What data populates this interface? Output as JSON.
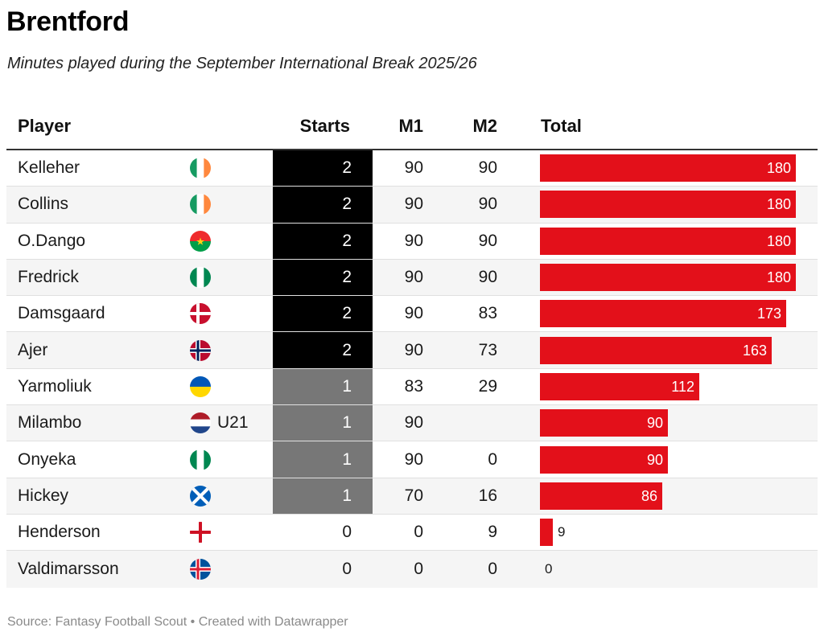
{
  "title": "Brentford",
  "subtitle": "Minutes played during the September International Break 2025/26",
  "footer": "Source: Fantasy Football Scout • Created with Datawrapper",
  "columns": {
    "player": "Player",
    "starts": "Starts",
    "m1": "M1",
    "m2": "M2",
    "total": "Total"
  },
  "colors": {
    "bar": "#e3101a",
    "starts_two": "#000000",
    "starts_one": "#777777"
  },
  "rows": [
    {
      "name": "Kelleher",
      "flag": "ireland-flag-icon",
      "extra": "",
      "starts": "2",
      "m1": "90",
      "m2": "90",
      "total": "180"
    },
    {
      "name": "Collins",
      "flag": "ireland-flag-icon",
      "extra": "",
      "starts": "2",
      "m1": "90",
      "m2": "90",
      "total": "180"
    },
    {
      "name": "O.Dango",
      "flag": "burkina-faso-flag-icon",
      "extra": "",
      "starts": "2",
      "m1": "90",
      "m2": "90",
      "total": "180"
    },
    {
      "name": "Fredrick",
      "flag": "nigeria-flag-icon",
      "extra": "",
      "starts": "2",
      "m1": "90",
      "m2": "90",
      "total": "180"
    },
    {
      "name": "Damsgaard",
      "flag": "denmark-flag-icon",
      "extra": "",
      "starts": "2",
      "m1": "90",
      "m2": "83",
      "total": "173"
    },
    {
      "name": "Ajer",
      "flag": "norway-flag-icon",
      "extra": "",
      "starts": "2",
      "m1": "90",
      "m2": "73",
      "total": "163"
    },
    {
      "name": "Yarmoliuk",
      "flag": "ukraine-flag-icon",
      "extra": "",
      "starts": "1",
      "m1": "83",
      "m2": "29",
      "total": "112"
    },
    {
      "name": "Milambo",
      "flag": "netherlands-flag-icon",
      "extra": "U21",
      "starts": "1",
      "m1": "90",
      "m2": "",
      "total": "90"
    },
    {
      "name": "Onyeka",
      "flag": "nigeria-flag-icon",
      "extra": "",
      "starts": "1",
      "m1": "90",
      "m2": "0",
      "total": "90"
    },
    {
      "name": "Hickey",
      "flag": "scotland-flag-icon",
      "extra": "",
      "starts": "1",
      "m1": "70",
      "m2": "16",
      "total": "86"
    },
    {
      "name": "Henderson",
      "flag": "england-flag-icon",
      "extra": "",
      "starts": "0",
      "m1": "0",
      "m2": "9",
      "total": "9"
    },
    {
      "name": "Valdimarsson",
      "flag": "iceland-flag-icon",
      "extra": "",
      "starts": "0",
      "m1": "0",
      "m2": "0",
      "total": "0"
    }
  ],
  "chart_data": {
    "type": "table",
    "columns": [
      "Player",
      "Starts",
      "M1",
      "M2",
      "Total"
    ],
    "categories": [
      "Kelleher",
      "Collins",
      "O.Dango",
      "Fredrick",
      "Damsgaard",
      "Ajer",
      "Yarmoliuk",
      "Milambo",
      "Onyeka",
      "Hickey",
      "Henderson",
      "Valdimarsson"
    ],
    "series": [
      {
        "name": "Starts",
        "values": [
          2,
          2,
          2,
          2,
          2,
          2,
          1,
          1,
          1,
          1,
          0,
          0
        ]
      },
      {
        "name": "M1",
        "values": [
          90,
          90,
          90,
          90,
          90,
          90,
          83,
          90,
          90,
          70,
          0,
          0
        ]
      },
      {
        "name": "M2",
        "values": [
          90,
          90,
          90,
          90,
          83,
          73,
          29,
          null,
          0,
          16,
          9,
          0
        ]
      },
      {
        "name": "Total",
        "values": [
          180,
          180,
          180,
          180,
          173,
          163,
          112,
          90,
          90,
          86,
          9,
          0
        ]
      }
    ],
    "total_max": 180,
    "title": "Brentford",
    "subtitle": "Minutes played during the September International Break 2025/26"
  }
}
